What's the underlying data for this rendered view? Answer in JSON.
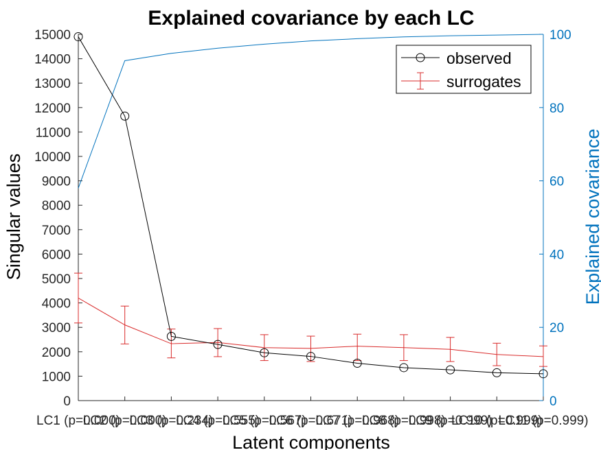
{
  "chart_data": {
    "type": "line",
    "title": "Explained covariance by each LC",
    "xlabel": "Latent components",
    "ylabel_left": "Singular values",
    "ylabel_right": "Explained covariance",
    "categories": [
      "LC1 (p=0.000)",
      "LC2 (p=0.000)",
      "LC3 (p=0.234)",
      "LC4 (p=0.555)",
      "LC5 (p=0.567)",
      "LC6 (p=0.671)",
      "LC7 (p=0.968)",
      "LC8 (p=0.998)",
      "LC9 (p=0.999)",
      "LC10 (p=0.999)",
      "LC11 (p=0.999)"
    ],
    "ylim_left": [
      0,
      15000
    ],
    "yticks_left": [
      0,
      1000,
      2000,
      3000,
      4000,
      5000,
      6000,
      7000,
      8000,
      9000,
      10000,
      11000,
      12000,
      13000,
      14000,
      15000
    ],
    "ylim_right": [
      0,
      100
    ],
    "yticks_right": [
      0,
      20,
      40,
      60,
      80,
      100
    ],
    "legend_position": "top-right",
    "grid": false,
    "series": [
      {
        "name": "observed",
        "axis": "left",
        "color": "#000000",
        "marker": "circle",
        "values": [
          14900,
          11650,
          2630,
          2300,
          1960,
          1810,
          1530,
          1350,
          1260,
          1140,
          1100
        ]
      },
      {
        "name": "surrogates",
        "axis": "left",
        "color": "#d92a2a",
        "errorbars": true,
        "values": [
          4200,
          3100,
          2330,
          2380,
          2170,
          2140,
          2230,
          2170,
          2100,
          1890,
          1800
        ],
        "lower": [
          3180,
          2320,
          1750,
          1800,
          1640,
          1600,
          1640,
          1640,
          1600,
          1430,
          1400
        ],
        "upper": [
          5220,
          3870,
          2930,
          2950,
          2700,
          2640,
          2720,
          2700,
          2590,
          2350,
          2240
        ]
      },
      {
        "axis": "right",
        "color": "#0072bd",
        "values": [
          58,
          92.8,
          94.8,
          96.2,
          97.3,
          98.2,
          98.8,
          99.3,
          99.6,
          99.8,
          100
        ]
      }
    ]
  }
}
